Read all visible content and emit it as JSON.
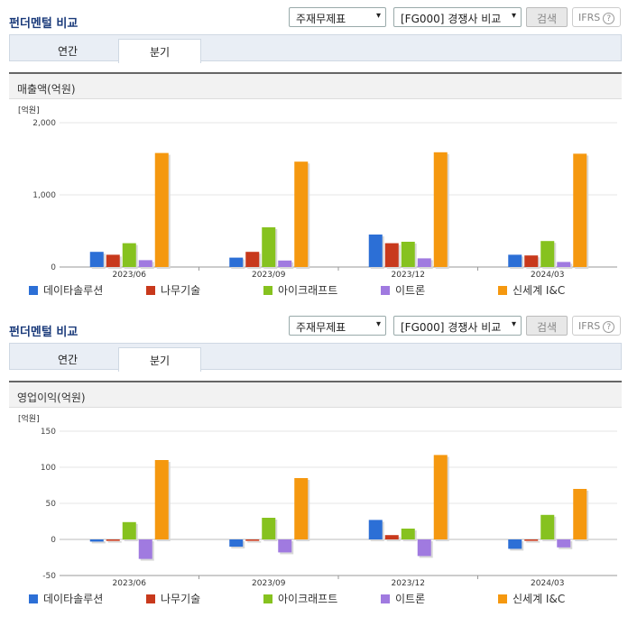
{
  "panels": [
    {
      "title": "펀더멘털 비교",
      "select1": "주재무제표",
      "select2": "[FG000] 경쟁사 비교",
      "search": "검색",
      "ifrs": "IFRS",
      "tabs": [
        "연간",
        "분기"
      ],
      "section": "매출액(억원)"
    },
    {
      "title": "펀더멘털 비교",
      "select1": "주재무제표",
      "select2": "[FG000] 경쟁사 비교",
      "search": "검색",
      "ifrs": "IFRS",
      "tabs": [
        "연간",
        "분기"
      ],
      "section": "영업이익(억원)"
    }
  ],
  "chart_data": [
    {
      "type": "bar",
      "unit_label": "[억원]",
      "categories": [
        "2023/06",
        "2023/09",
        "2023/12",
        "2024/03"
      ],
      "ylim": [
        0,
        2000
      ],
      "yticks": [
        "0",
        "1,000",
        "2,000"
      ],
      "series": [
        {
          "name": "데이타솔루션",
          "color": "#2c6fd6",
          "values": [
            210,
            130,
            450,
            170
          ]
        },
        {
          "name": "나무기술",
          "color": "#c8391c",
          "values": [
            170,
            210,
            330,
            160
          ]
        },
        {
          "name": "아이크래프트",
          "color": "#86c21f",
          "values": [
            330,
            550,
            350,
            360
          ]
        },
        {
          "name": "이트론",
          "color": "#a07ae0",
          "values": [
            95,
            90,
            120,
            70
          ]
        },
        {
          "name": "신세계 I&C",
          "color": "#f5980f",
          "values": [
            1580,
            1460,
            1590,
            1570
          ]
        }
      ]
    },
    {
      "type": "bar",
      "unit_label": "[억원]",
      "categories": [
        "2023/06",
        "2023/09",
        "2023/12",
        "2024/03"
      ],
      "ylim": [
        -50,
        150
      ],
      "yticks": [
        "-50",
        "0",
        "50",
        "100",
        "150"
      ],
      "series": [
        {
          "name": "데이타솔루션",
          "color": "#2c6fd6",
          "values": [
            -3,
            -10,
            27,
            -13
          ]
        },
        {
          "name": "나무기술",
          "color": "#c8391c",
          "values": [
            -2,
            -2,
            6,
            -2
          ]
        },
        {
          "name": "아이크래프트",
          "color": "#86c21f",
          "values": [
            24,
            30,
            15,
            34
          ]
        },
        {
          "name": "이트론",
          "color": "#a07ae0",
          "values": [
            -27,
            -18,
            -23,
            -11
          ]
        },
        {
          "name": "신세계 I&C",
          "color": "#f5980f",
          "values": [
            110,
            85,
            117,
            70
          ]
        }
      ]
    }
  ]
}
